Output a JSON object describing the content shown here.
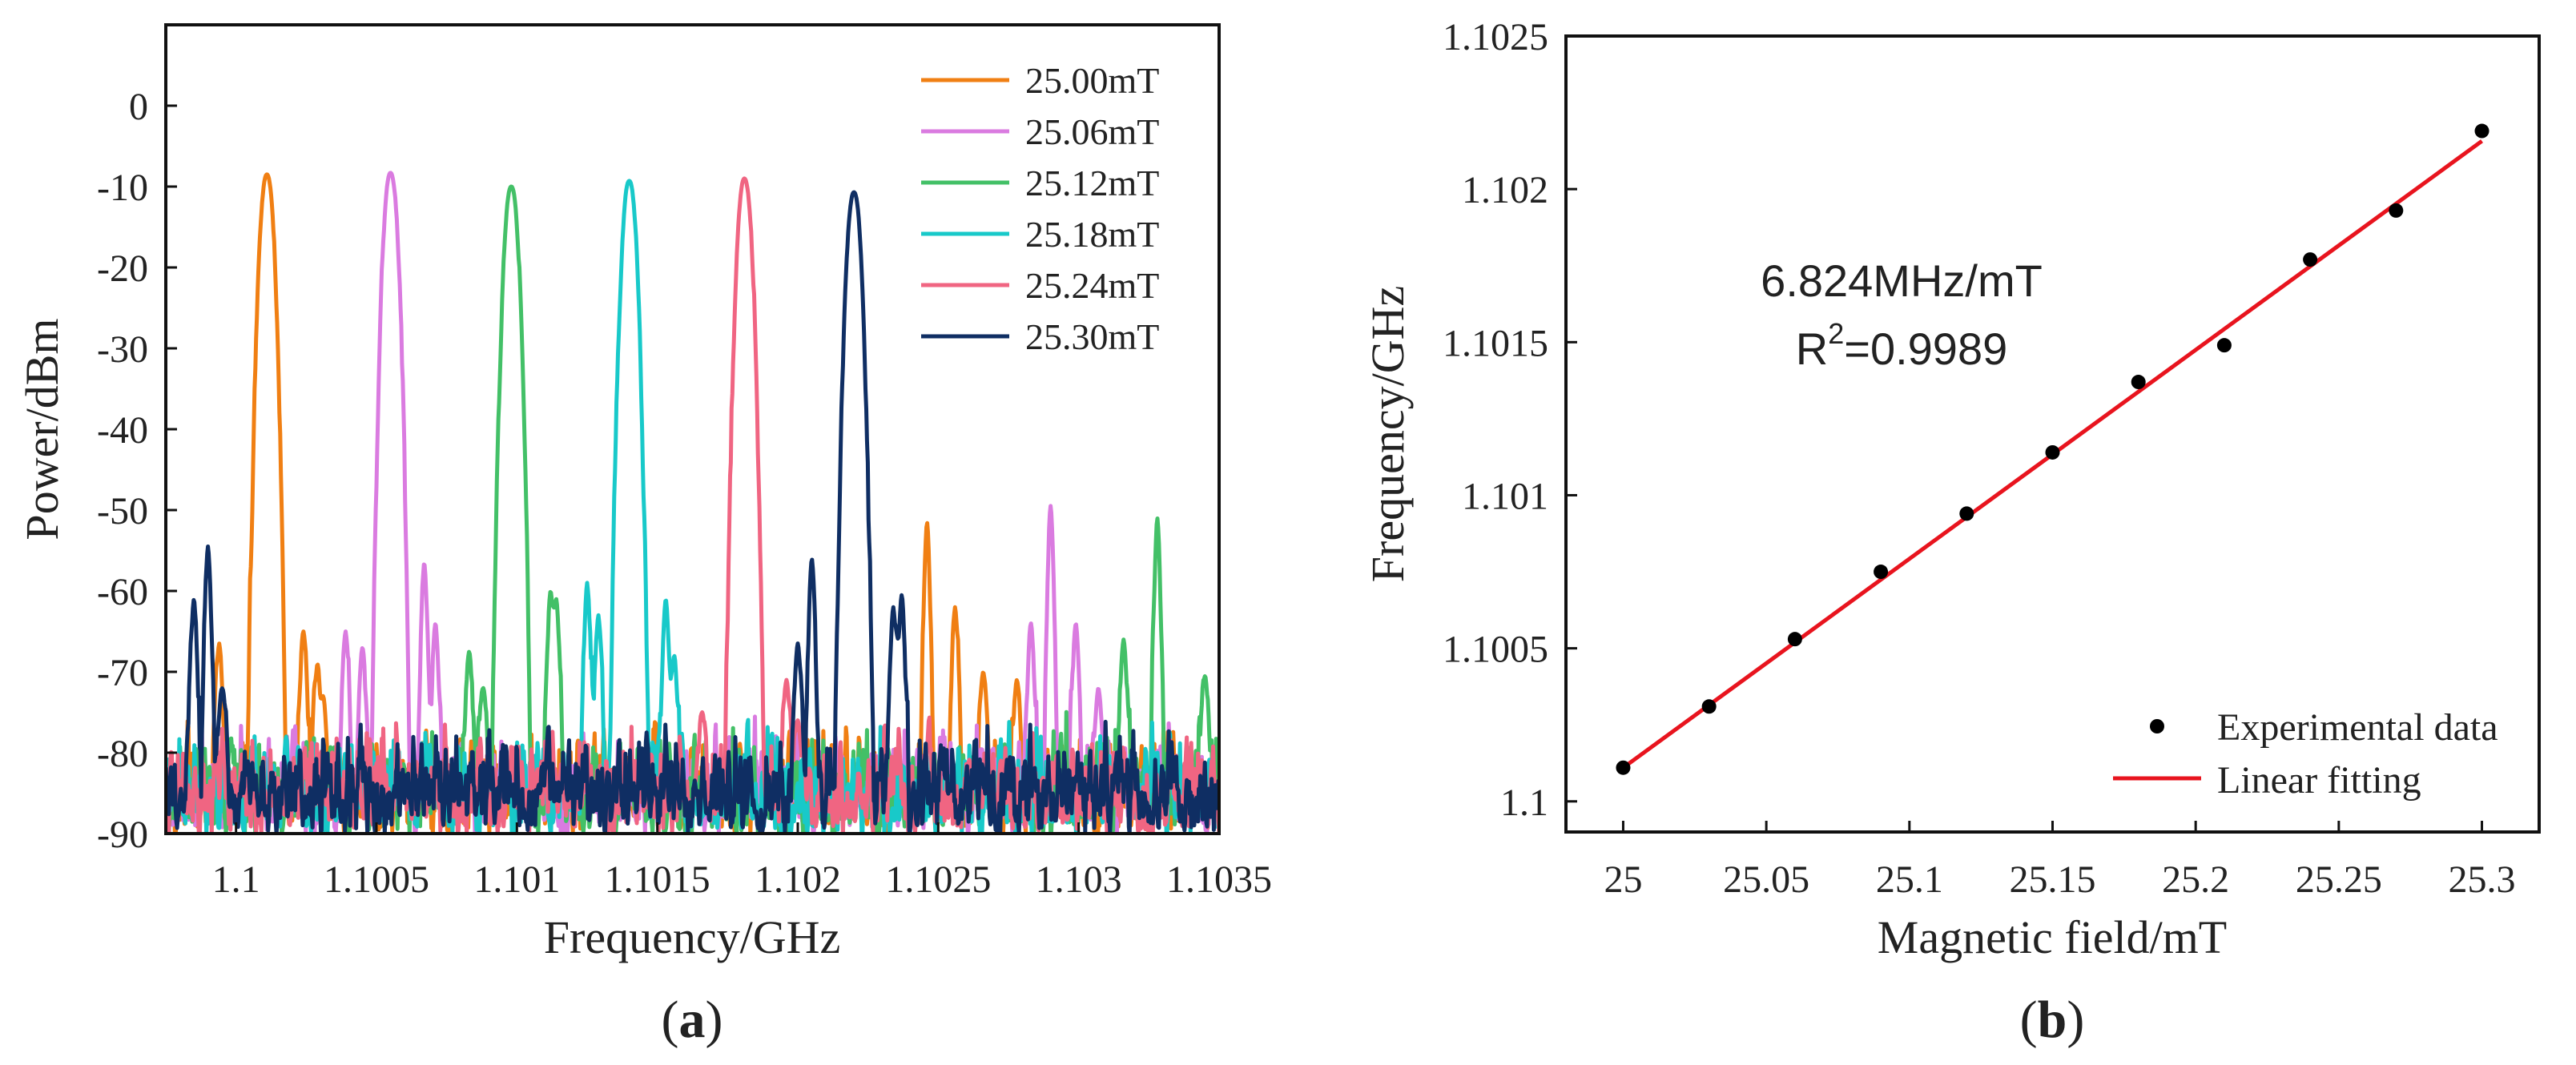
{
  "chart_data": [
    {
      "type": "line",
      "panel_label": "a",
      "xlabel": "Frequency/GHz",
      "ylabel": "Power/dBm",
      "xlim": [
        1.09975,
        1.1035
      ],
      "ylim": [
        -90,
        10
      ],
      "xticks": [
        1.1,
        1.1005,
        1.101,
        1.1015,
        1.102,
        1.1025,
        1.103,
        1.1035
      ],
      "xtick_labels": [
        "1.1",
        "1.1005",
        "1.101",
        "1.1015",
        "1.102",
        "1.1025",
        "1.103",
        "1.1035"
      ],
      "yticks": [
        0,
        -10,
        -20,
        -30,
        -40,
        -50,
        -60,
        -70,
        -80,
        -90
      ],
      "ytick_labels": [
        "0",
        "-10",
        "-20",
        "-30",
        "-40",
        "-50",
        "-60",
        "-70",
        "-80",
        "-90"
      ],
      "legend_position": "top-right",
      "series": [
        {
          "name": "25.00mT",
          "color": "#f07f13",
          "peak_freq": 1.10011,
          "peak_power": -8.5,
          "sidelobes": [
            [
              1.09994,
              -66.5
            ],
            [
              1.10024,
              -65
            ],
            [
              1.10029,
              -69
            ],
            [
              1.10031,
              -73
            ],
            [
              1.10246,
              -51.5
            ],
            [
              1.10256,
              -62
            ],
            [
              1.10266,
              -70
            ],
            [
              1.10278,
              -71
            ]
          ]
        },
        {
          "name": "25.06mT",
          "color": "#da7be0",
          "peak_freq": 1.10055,
          "peak_power": -8.3,
          "sidelobes": [
            [
              1.10039,
              -65
            ],
            [
              1.10045,
              -67
            ],
            [
              1.10067,
              -56.5
            ],
            [
              1.10071,
              -64
            ],
            [
              1.1029,
              -49.5
            ],
            [
              1.10283,
              -64
            ],
            [
              1.10299,
              -64
            ],
            [
              1.10307,
              -72
            ]
          ]
        },
        {
          "name": "25.12mT",
          "color": "#43c067",
          "peak_freq": 1.10098,
          "peak_power": -10.0,
          "sidelobes": [
            [
              1.10083,
              -67.5
            ],
            [
              1.10088,
              -72
            ],
            [
              1.10112,
              -60
            ],
            [
              1.10114,
              -61
            ],
            [
              1.10328,
              -51
            ],
            [
              1.10316,
              -66
            ],
            [
              1.10345,
              -70.5
            ]
          ]
        },
        {
          "name": "25.18mT",
          "color": "#18c9c9",
          "peak_freq": 1.1014,
          "peak_power": -9.3,
          "sidelobes": [
            [
              1.10125,
              -59
            ],
            [
              1.10129,
              -63
            ],
            [
              1.10153,
              -61
            ],
            [
              1.10156,
              -68
            ]
          ]
        },
        {
          "name": "25.24mT",
          "color": "#f06582",
          "peak_freq": 1.10181,
          "peak_power": -9.0,
          "sidelobes": [
            [
              1.10166,
              -75
            ],
            [
              1.10196,
              -71
            ],
            [
              1.102,
              -76
            ]
          ]
        },
        {
          "name": "25.30mT",
          "color": "#0f2e63",
          "peak_freq": 1.1022,
          "peak_power": -10.7,
          "sidelobes": [
            [
              1.09985,
              -61
            ],
            [
              1.0999,
              -54.5
            ],
            [
              1.09995,
              -72
            ],
            [
              1.102,
              -66.5
            ],
            [
              1.10205,
              -56
            ],
            [
              1.10237,
              -60.5
            ],
            [
              1.10234,
              -62
            ]
          ]
        }
      ],
      "noise_floor": [
        -90,
        -75
      ]
    },
    {
      "type": "scatter",
      "panel_label": "b",
      "xlabel": "Magnetic field/mT",
      "ylabel": "Frequency/GHz",
      "xlim": [
        24.98,
        25.32
      ],
      "ylim": [
        1.0999,
        1.1025
      ],
      "xticks": [
        25,
        25.05,
        25.1,
        25.15,
        25.2,
        25.25,
        25.3
      ],
      "xtick_labels": [
        "25",
        "25.05",
        "25.1",
        "25.15",
        "25.2",
        "25.25",
        "25.3"
      ],
      "yticks": [
        1.1,
        1.1005,
        1.101,
        1.1015,
        1.102,
        1.1025
      ],
      "ytick_labels": [
        "1.1",
        "1.1005",
        "1.101",
        "1.1015",
        "1.102",
        "1.1025"
      ],
      "legend_position": "bottom-right",
      "series": [
        {
          "name": "Experimental data",
          "color": "#000000",
          "x": [
            25.0,
            25.03,
            25.06,
            25.09,
            25.12,
            25.15,
            25.18,
            25.21,
            25.24,
            25.27,
            25.3
          ],
          "y": [
            1.10011,
            1.10031,
            1.10053,
            1.10075,
            1.10094,
            1.10114,
            1.10137,
            1.10149,
            1.10177,
            1.10193,
            1.10219
          ]
        },
        {
          "name": "Linear fitting",
          "color": "#e8141e",
          "x": [
            25.0,
            25.3
          ],
          "y": [
            1.10011,
            1.102157
          ]
        }
      ],
      "annotation": {
        "slope_text": "6.824MHz/mT",
        "r2_prefix": "R",
        "r2_exponent": "2",
        "r2_value": "=0.9989"
      }
    }
  ]
}
